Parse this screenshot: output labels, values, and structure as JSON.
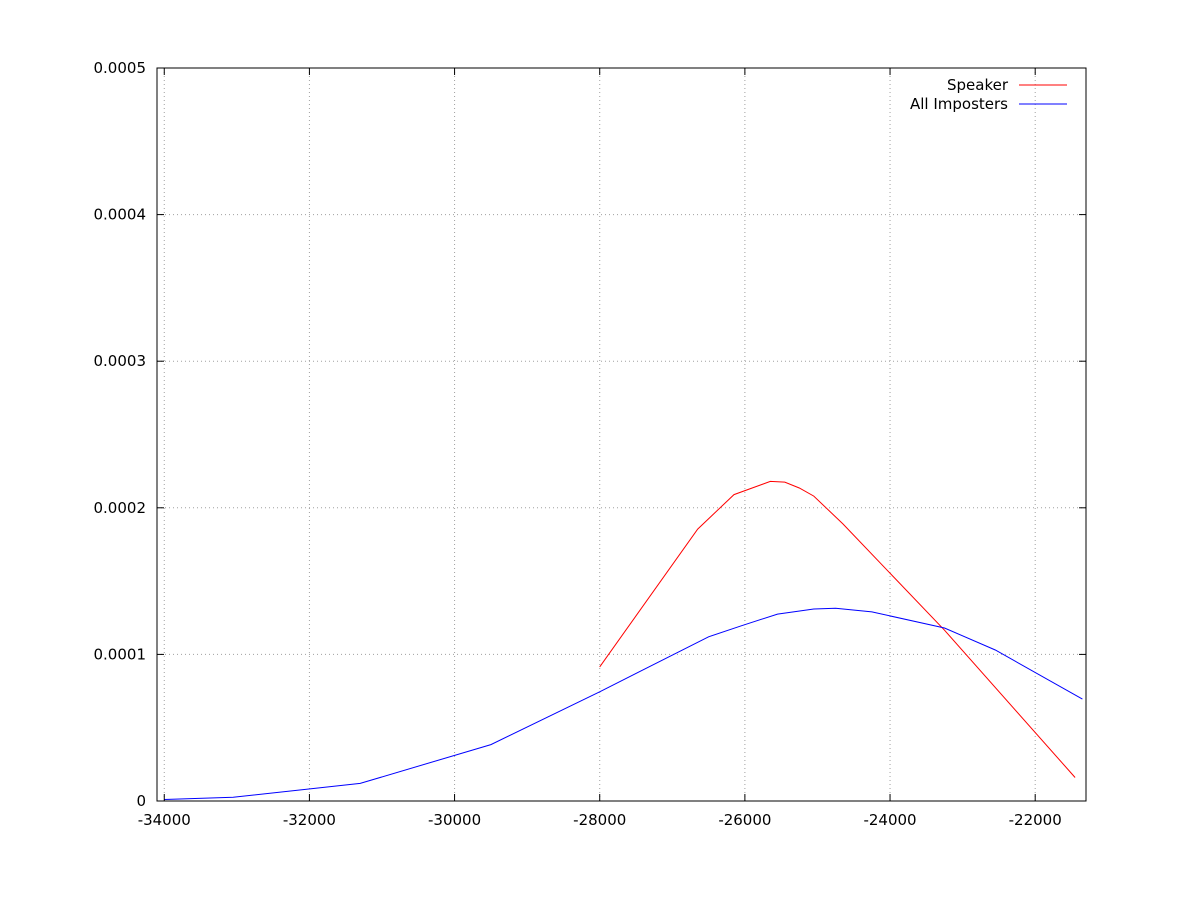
{
  "chart_data": {
    "type": "line",
    "title": "",
    "xlabel": "",
    "ylabel": "",
    "xlim": [
      -34100,
      -21300
    ],
    "ylim": [
      0,
      0.0005
    ],
    "x_ticks": [
      -34000,
      -32000,
      -30000,
      -28000,
      -26000,
      -24000,
      -22000
    ],
    "y_ticks": [
      0,
      0.0001,
      0.0002,
      0.0003,
      0.0004,
      0.0005
    ],
    "x_tick_labels": [
      "-34000",
      "-32000",
      "-30000",
      "-28000",
      "-26000",
      "-24000",
      "-22000"
    ],
    "y_tick_labels": [
      "0",
      "0.0001",
      "0.0002",
      "0.0003",
      "0.0004",
      "0.0005"
    ],
    "grid": true,
    "legend": "top-right",
    "series": [
      {
        "name": "Speaker",
        "color": "#ff0000",
        "points": [
          [
            -28000,
            9.15e-05
          ],
          [
            -26650,
            0.0001855
          ],
          [
            -26150,
            0.000209
          ],
          [
            -25650,
            0.000218
          ],
          [
            -25450,
            0.0002175
          ],
          [
            -25250,
            0.0002135
          ],
          [
            -25050,
            0.000208
          ],
          [
            -24650,
            0.000189
          ],
          [
            -23250,
            0.0001165
          ],
          [
            -21450,
            1.6e-05
          ]
        ]
      },
      {
        "name": "All Imposters",
        "color": "#0000ff",
        "points": [
          [
            -34000,
            1e-06
          ],
          [
            -33050,
            2.5e-06
          ],
          [
            -31300,
            1.2e-05
          ],
          [
            -29500,
            3.85e-05
          ],
          [
            -28000,
            7.45e-05
          ],
          [
            -26500,
            0.000112
          ],
          [
            -26050,
            0.0001195
          ],
          [
            -25550,
            0.0001275
          ],
          [
            -25050,
            0.000131
          ],
          [
            -24750,
            0.0001315
          ],
          [
            -24250,
            0.000129
          ],
          [
            -23250,
            0.000118
          ],
          [
            -22550,
            0.000103
          ],
          [
            -21350,
            6.95e-05
          ]
        ]
      }
    ]
  }
}
